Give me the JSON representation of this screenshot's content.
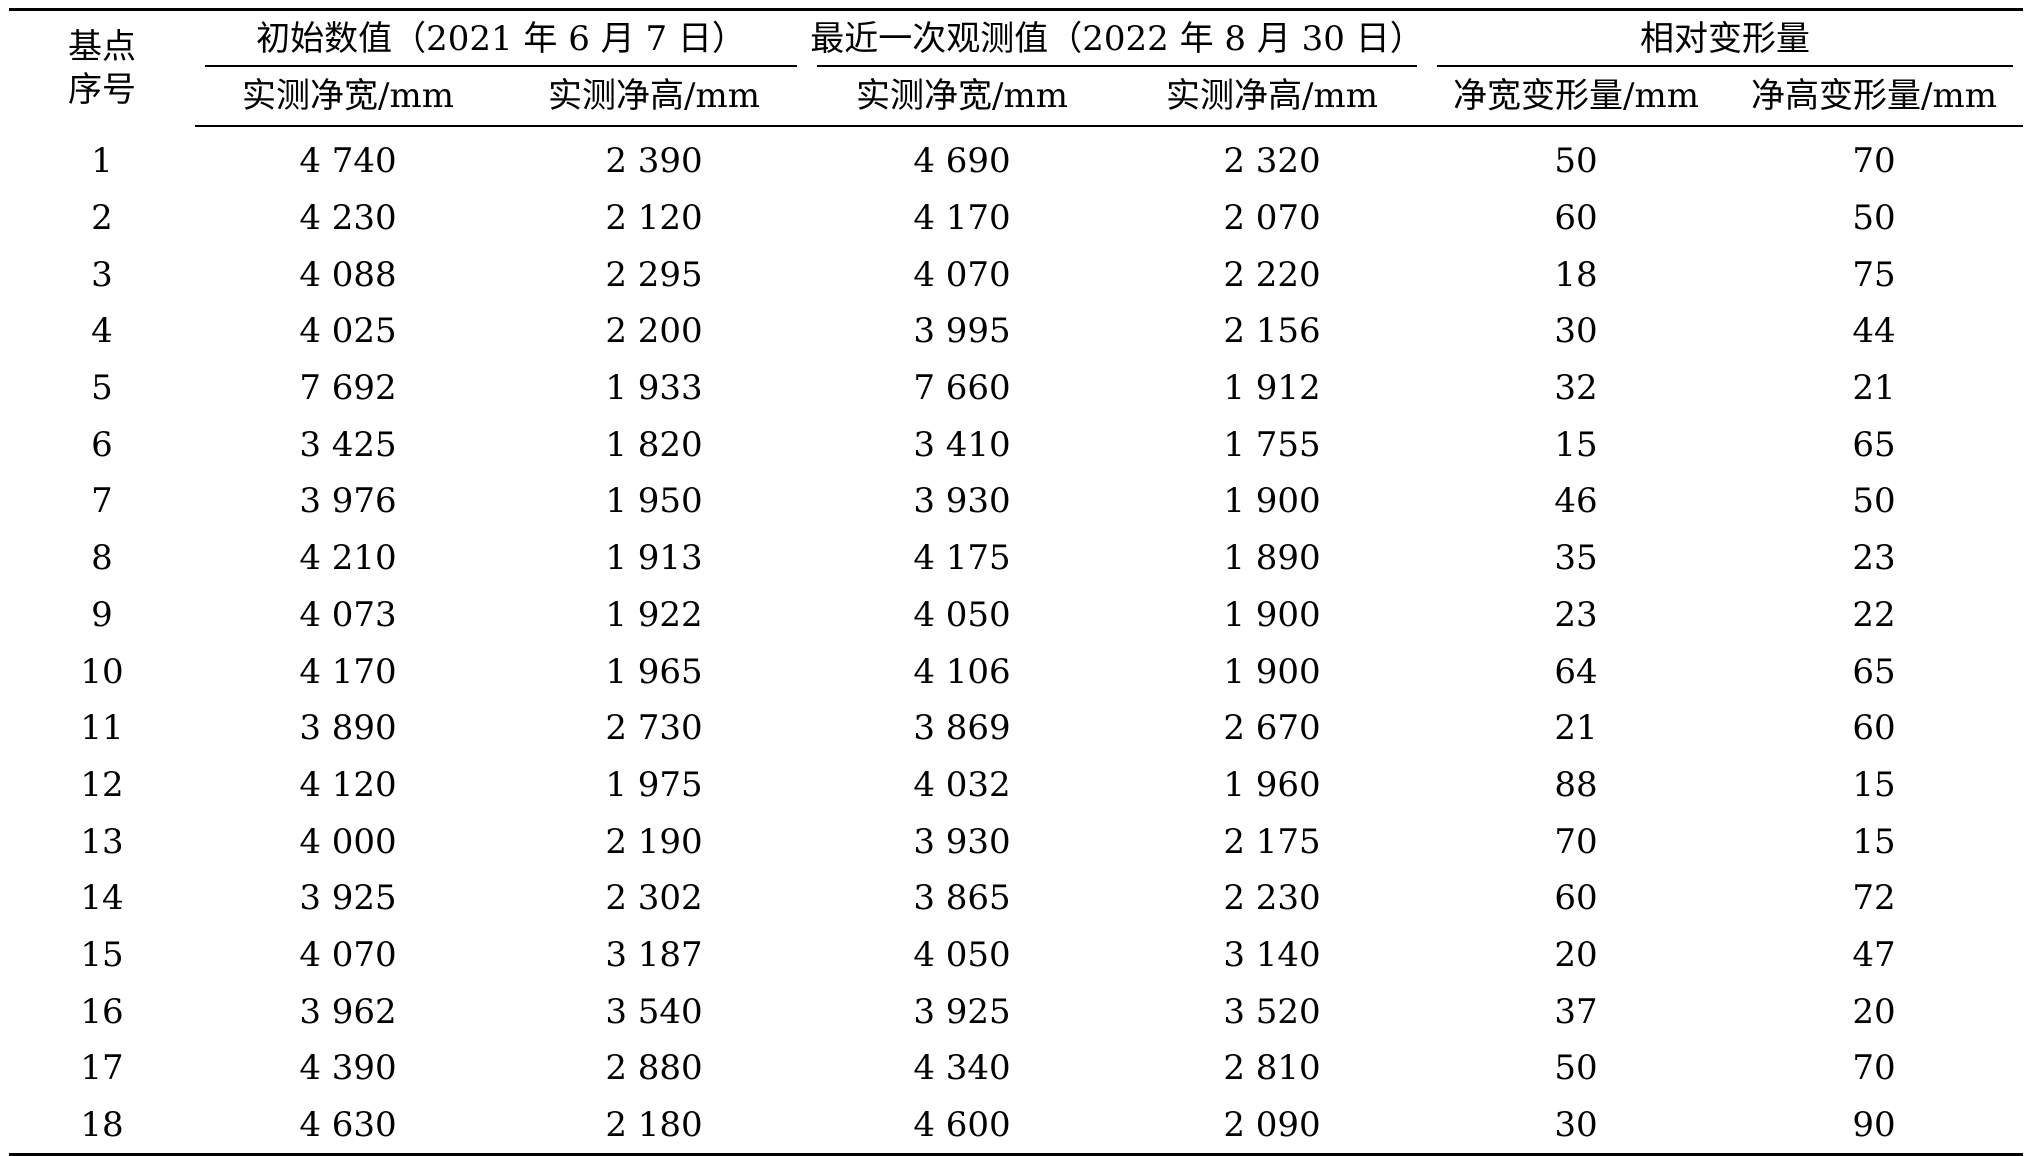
{
  "table": {
    "row_header": "基点序号",
    "row_header_lines": [
      "基点",
      "序号"
    ],
    "groups": [
      {
        "label": "初始数值（2021 年 6 月 7 日）"
      },
      {
        "label": "最近一次观测值（2022 年 8 月 30 日）"
      },
      {
        "label": "相对变形量"
      }
    ],
    "subheaders": [
      "实测净宽/mm",
      "实测净高/mm",
      "实测净宽/mm",
      "实测净高/mm",
      "净宽变形量/mm",
      "净高变形量/mm"
    ],
    "rows": [
      [
        "1",
        "4 740",
        "2 390",
        "4 690",
        "2 320",
        "50",
        "70"
      ],
      [
        "2",
        "4 230",
        "2 120",
        "4 170",
        "2 070",
        "60",
        "50"
      ],
      [
        "3",
        "4 088",
        "2 295",
        "4 070",
        "2 220",
        "18",
        "75"
      ],
      [
        "4",
        "4 025",
        "2 200",
        "3 995",
        "2 156",
        "30",
        "44"
      ],
      [
        "5",
        "7 692",
        "1 933",
        "7 660",
        "1 912",
        "32",
        "21"
      ],
      [
        "6",
        "3 425",
        "1 820",
        "3 410",
        "1 755",
        "15",
        "65"
      ],
      [
        "7",
        "3 976",
        "1 950",
        "3 930",
        "1 900",
        "46",
        "50"
      ],
      [
        "8",
        "4 210",
        "1 913",
        "4 175",
        "1 890",
        "35",
        "23"
      ],
      [
        "9",
        "4 073",
        "1 922",
        "4 050",
        "1 900",
        "23",
        "22"
      ],
      [
        "10",
        "4 170",
        "1 965",
        "4 106",
        "1 900",
        "64",
        "65"
      ],
      [
        "11",
        "3 890",
        "2 730",
        "3 869",
        "2 670",
        "21",
        "60"
      ],
      [
        "12",
        "4 120",
        "1 975",
        "4 032",
        "1 960",
        "88",
        "15"
      ],
      [
        "13",
        "4 000",
        "2 190",
        "3 930",
        "2 175",
        "70",
        "15"
      ],
      [
        "14",
        "3 925",
        "2 302",
        "3 865",
        "2 230",
        "60",
        "72"
      ],
      [
        "15",
        "4 070",
        "3 187",
        "4 050",
        "3 140",
        "20",
        "47"
      ],
      [
        "16",
        "3 962",
        "3 540",
        "3 925",
        "3 520",
        "37",
        "20"
      ],
      [
        "17",
        "4 390",
        "2 880",
        "4 340",
        "2 810",
        "50",
        "70"
      ],
      [
        "18",
        "4 630",
        "2 180",
        "4 600",
        "2 090",
        "30",
        "90"
      ]
    ]
  }
}
